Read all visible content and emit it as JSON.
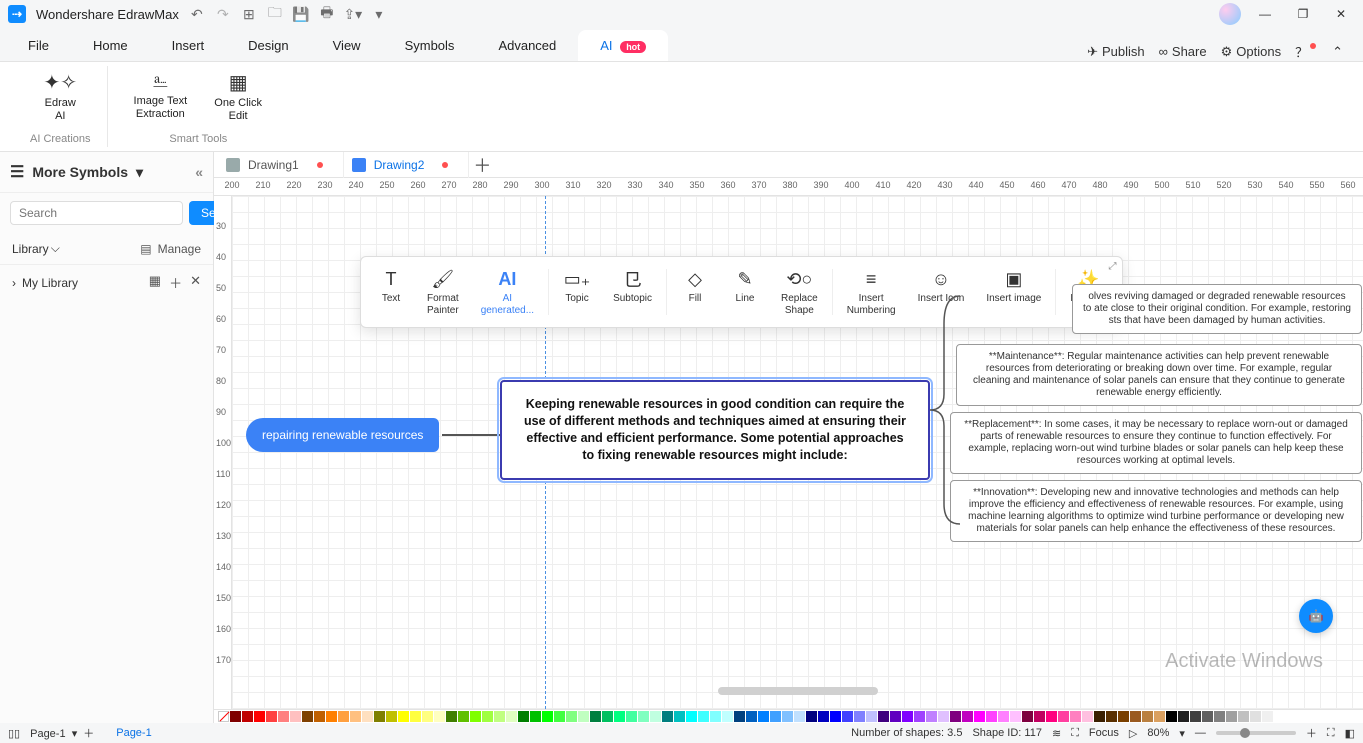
{
  "app": {
    "title": "Wondershare EdrawMax"
  },
  "menus": {
    "file": "File",
    "home": "Home",
    "insert": "Insert",
    "design": "Design",
    "view": "View",
    "symbols": "Symbols",
    "advanced": "Advanced",
    "ai": "AI",
    "hot": "hot",
    "publish": "Publish",
    "share": "Share",
    "options": "Options"
  },
  "ribbon": {
    "edrawai": "Edraw\nAI",
    "imgtext": "Image Text\nExtraction",
    "oneclick": "One Click\nEdit",
    "grp1": "AI Creations",
    "grp2": "Smart Tools"
  },
  "sidebar": {
    "more": "More Symbols",
    "search_ph": "Search",
    "search_btn": "Search",
    "library": "Library",
    "manage": "Manage",
    "mylib": "My Library"
  },
  "tabs": {
    "d1": "Drawing1",
    "d2": "Drawing2"
  },
  "ruler_h": [
    "200",
    "210",
    "220",
    "230",
    "240",
    "250",
    "260",
    "270",
    "280",
    "290",
    "300",
    "310",
    "320",
    "330",
    "340",
    "350",
    "360",
    "370",
    "380",
    "390",
    "400",
    "410",
    "420",
    "430",
    "440",
    "450",
    "460",
    "470",
    "480",
    "490",
    "500",
    "510",
    "520",
    "530",
    "540",
    "550",
    "560"
  ],
  "ruler_v": [
    "30",
    "40",
    "50",
    "60",
    "70",
    "80",
    "90",
    "100",
    "110",
    "120",
    "130",
    "140",
    "150",
    "160",
    "170"
  ],
  "float": {
    "text": "Text",
    "format": "Format\nPainter",
    "aigen": "AI\ngenerated...",
    "topic": "Topic",
    "subtopic": "Subtopic",
    "fill": "Fill",
    "line": "Line",
    "replace": "Replace\nShape",
    "insnum": "Insert\nNumbering",
    "insicon": "Insert Icon",
    "insimg": "Insert image",
    "beautify": "Beautify"
  },
  "nodes": {
    "main": "repairing renewable resources",
    "sub": "Keeping renewable resources in good condition can require the use of different methods and techniques aimed at ensuring their effective and efficient performance. Some potential approaches to fixing renewable resources might include:",
    "leaf1": "olves reviving damaged or degraded renewable resources to ate close to their original condition. For example, restoring sts that have been damaged by human activities.",
    "leaf2": "**Maintenance**: Regular maintenance activities can help prevent renewable resources from deteriorating or breaking down over time. For example, regular cleaning and maintenance of solar panels can ensure that they continue to generate renewable energy efficiently.",
    "leaf3": "**Replacement**: In some cases, it may be necessary to replace worn-out or damaged parts of renewable resources to ensure they continue to function effectively. For example, replacing worn-out wind turbine blades or solar panels can help keep these resources working at optimal levels.",
    "leaf4": "**Innovation**: Developing new and innovative technologies and methods can help improve the efficiency and effectiveness of renewable resources. For example, using machine learning algorithms to optimize wind turbine performance or developing new materials for solar panels can help enhance the effectiveness of these resources."
  },
  "colors": [
    "#7f0000",
    "#c00000",
    "#ff0000",
    "#ff4040",
    "#ff8080",
    "#ffc0c0",
    "#7f4000",
    "#c06000",
    "#ff8000",
    "#ffa040",
    "#ffc080",
    "#ffe0c0",
    "#7f7f00",
    "#c0c000",
    "#ffff00",
    "#ffff40",
    "#ffff80",
    "#ffffc0",
    "#407f00",
    "#60c000",
    "#80ff00",
    "#a0ff40",
    "#c0ff80",
    "#e0ffc0",
    "#007f00",
    "#00c000",
    "#00ff00",
    "#40ff40",
    "#80ff80",
    "#c0ffc0",
    "#007f40",
    "#00c060",
    "#00ff80",
    "#40ffa0",
    "#80ffc0",
    "#c0ffe0",
    "#007f7f",
    "#00c0c0",
    "#00ffff",
    "#40ffff",
    "#80ffff",
    "#c0ffff",
    "#00407f",
    "#0060c0",
    "#0080ff",
    "#40a0ff",
    "#80c0ff",
    "#c0e0ff",
    "#00007f",
    "#0000c0",
    "#0000ff",
    "#4040ff",
    "#8080ff",
    "#c0c0ff",
    "#40007f",
    "#6000c0",
    "#8000ff",
    "#a040ff",
    "#c080ff",
    "#e0c0ff",
    "#7f007f",
    "#c000c0",
    "#ff00ff",
    "#ff40ff",
    "#ff80ff",
    "#ffc0ff",
    "#7f0040",
    "#c00060",
    "#ff0080",
    "#ff40a0",
    "#ff80c0",
    "#ffc0e0",
    "#3a1f00",
    "#5a3000",
    "#7a4000",
    "#9a5a20",
    "#ba8040",
    "#daa060",
    "#000000",
    "#202020",
    "#404040",
    "#606060",
    "#808080",
    "#a0a0a0",
    "#c0c0c0",
    "#e0e0e0",
    "#f0f0f0",
    "#ffffff"
  ],
  "status": {
    "page": "Page-1",
    "pagetab": "Page-1",
    "shapes_lbl": "Number of shapes:",
    "shapes": "3.5",
    "shapeid_lbl": "Shape ID:",
    "shapeid": "117",
    "focus": "Focus",
    "zoom": "80%"
  },
  "watermark": "Activate Windows"
}
